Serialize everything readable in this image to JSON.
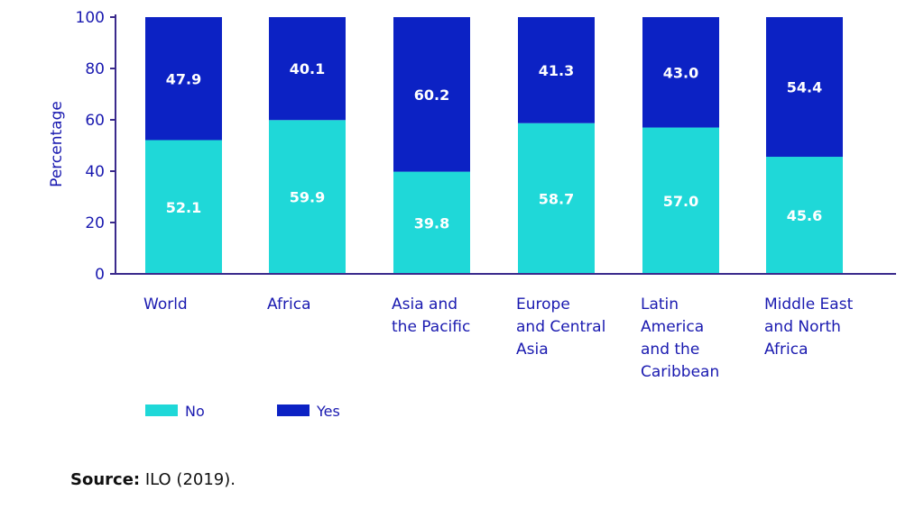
{
  "chart_data": {
    "type": "bar",
    "stacked": true,
    "categories": [
      [
        "World"
      ],
      [
        "Africa"
      ],
      [
        "Asia and",
        "the Pacific"
      ],
      [
        "Europe",
        "and Central",
        "Asia"
      ],
      [
        "Latin",
        "America",
        "and the",
        "Caribbean"
      ],
      [
        "Middle East",
        "and North",
        "Africa"
      ]
    ],
    "series": [
      {
        "name": "No",
        "color": "#1fd8d8",
        "values": [
          52.1,
          59.9,
          39.8,
          58.7,
          57.0,
          45.6
        ],
        "labels": [
          "52.1",
          "59.9",
          "39.8",
          "58.7",
          "57.0",
          "45.6"
        ]
      },
      {
        "name": "Yes",
        "color": "#0c22c4",
        "values": [
          47.9,
          40.1,
          60.2,
          41.3,
          43.0,
          54.4
        ],
        "labels": [
          "47.9",
          "40.1",
          "60.2",
          "41.3",
          "43.0",
          "54.4"
        ]
      }
    ],
    "ylabel": "Percentage",
    "ylim": [
      0,
      100
    ],
    "yticks": [
      "0",
      "20",
      "40",
      "60",
      "80",
      "100"
    ],
    "axis_color": "#3a2a8c",
    "legend_placement": "bottom-left",
    "grid": false
  },
  "source": {
    "prefix": "Source:",
    "text": " ILO (2019)."
  }
}
